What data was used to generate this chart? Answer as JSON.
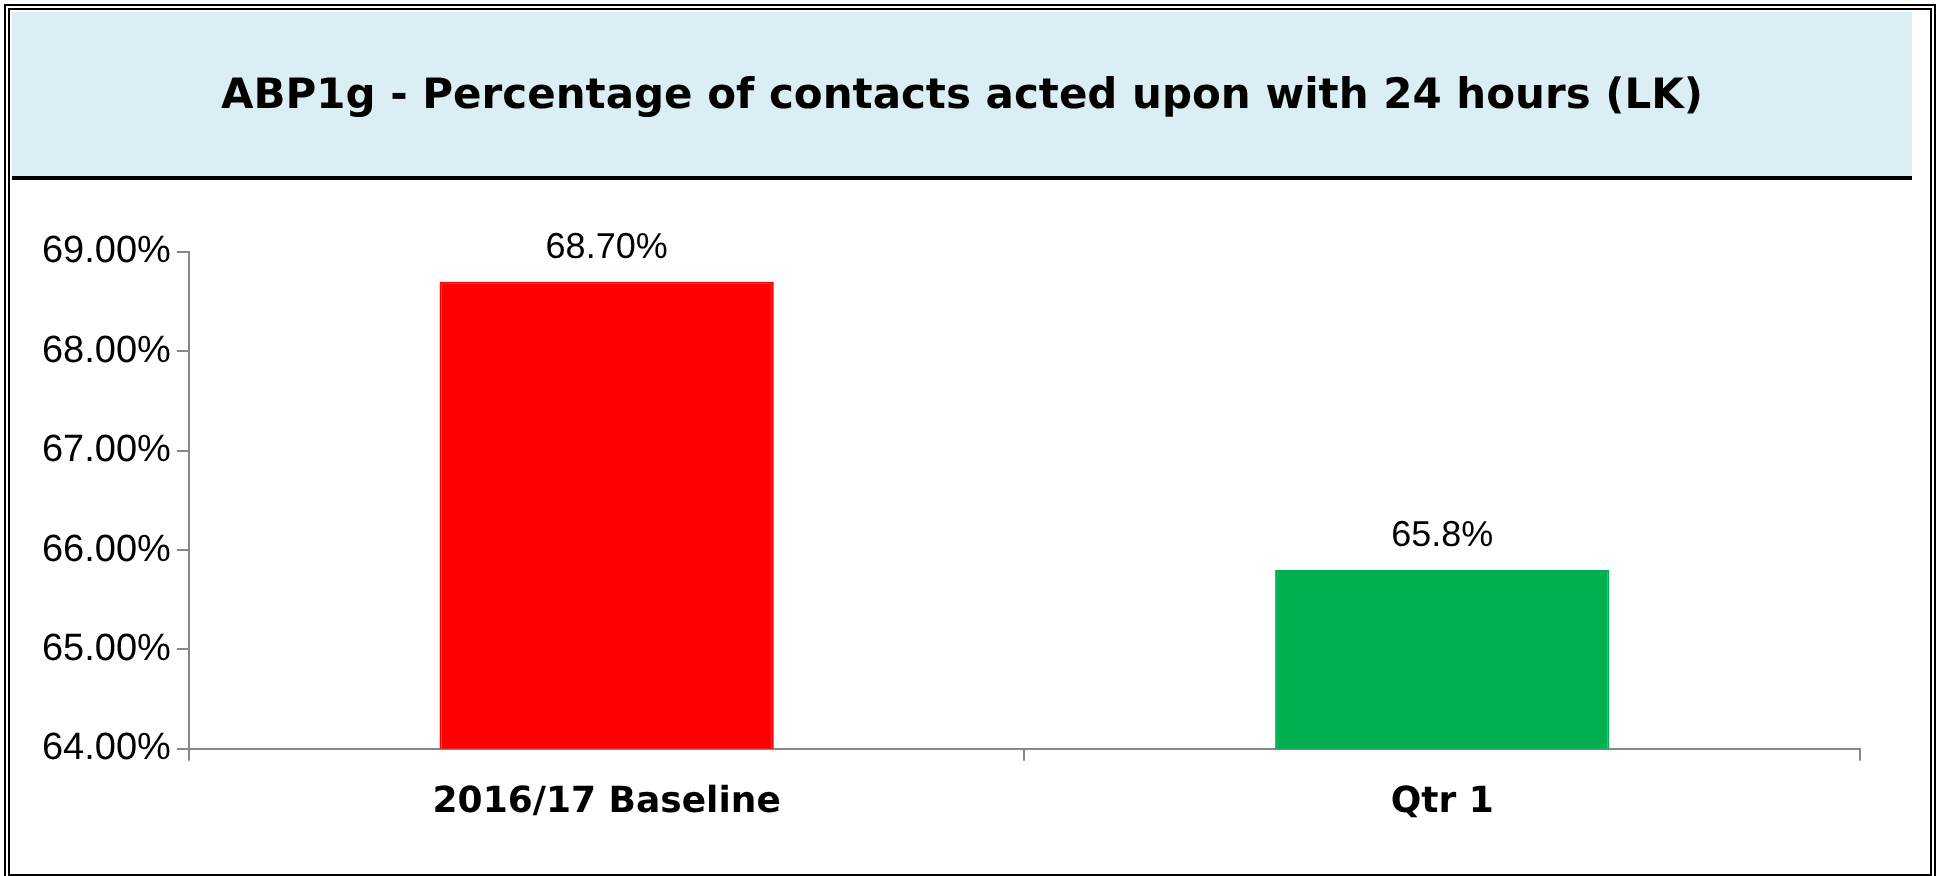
{
  "chart_data": {
    "type": "bar",
    "title": "ABP1g - Percentage of contacts acted upon with 24 hours (LK)",
    "categories": [
      "2016/17 Baseline",
      "Qtr 1"
    ],
    "values": [
      68.7,
      65.8
    ],
    "colors": [
      "#ff0000",
      "#00b050"
    ],
    "value_labels": [
      "68.70%",
      "65.8%"
    ],
    "ylim": [
      64,
      69
    ],
    "yticks": [
      {
        "value": 64,
        "label": "64.00%"
      },
      {
        "value": 65,
        "label": "65.00%"
      },
      {
        "value": 66,
        "label": "66.00%"
      },
      {
        "value": 67,
        "label": "67.00%"
      },
      {
        "value": 68,
        "label": "68.00%"
      },
      {
        "value": 69,
        "label": "69.00%"
      }
    ]
  }
}
